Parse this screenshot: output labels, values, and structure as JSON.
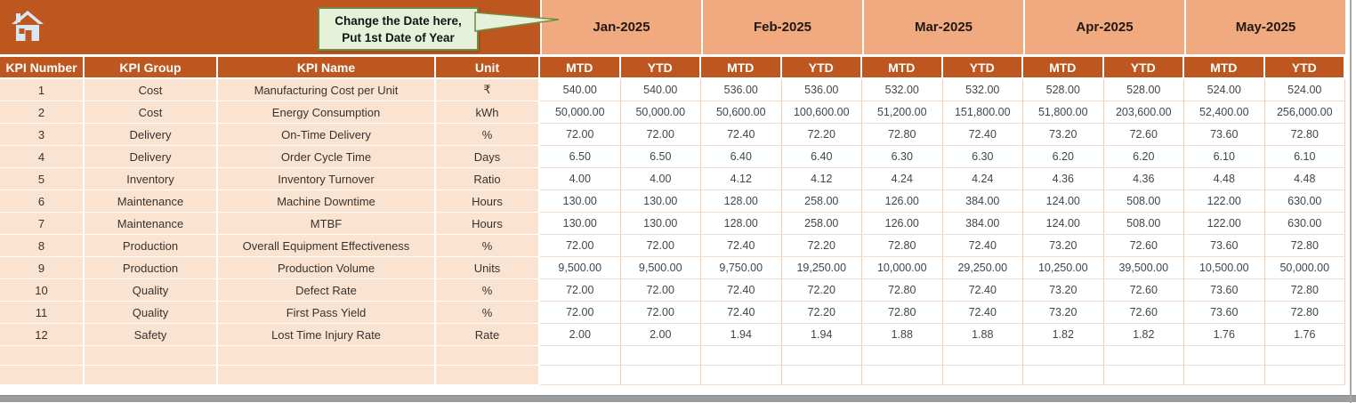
{
  "callout": {
    "line1": "Change the Date here,",
    "line2": "Put 1st Date of Year"
  },
  "table": {
    "columns": [
      "KPI Number",
      "KPI Group",
      "KPI Name",
      "Unit"
    ],
    "months": [
      "Jan-2025",
      "Feb-2025",
      "Mar-2025",
      "Apr-2025",
      "May-2025"
    ],
    "subheaders": [
      "MTD",
      "YTD"
    ],
    "rows": [
      {
        "number": "1",
        "group": "Cost",
        "name": "Manufacturing Cost per Unit",
        "unit": "₹",
        "values": [
          "540.00",
          "540.00",
          "536.00",
          "536.00",
          "532.00",
          "532.00",
          "528.00",
          "528.00",
          "524.00",
          "524.00"
        ]
      },
      {
        "number": "2",
        "group": "Cost",
        "name": "Energy Consumption",
        "unit": "kWh",
        "values": [
          "50,000.00",
          "50,000.00",
          "50,600.00",
          "100,600.00",
          "51,200.00",
          "151,800.00",
          "51,800.00",
          "203,600.00",
          "52,400.00",
          "256,000.00"
        ]
      },
      {
        "number": "3",
        "group": "Delivery",
        "name": "On-Time Delivery",
        "unit": "%",
        "values": [
          "72.00",
          "72.00",
          "72.40",
          "72.20",
          "72.80",
          "72.40",
          "73.20",
          "72.60",
          "73.60",
          "72.80"
        ]
      },
      {
        "number": "4",
        "group": "Delivery",
        "name": "Order Cycle Time",
        "unit": "Days",
        "values": [
          "6.50",
          "6.50",
          "6.40",
          "6.40",
          "6.30",
          "6.30",
          "6.20",
          "6.20",
          "6.10",
          "6.10"
        ]
      },
      {
        "number": "5",
        "group": "Inventory",
        "name": "Inventory Turnover",
        "unit": "Ratio",
        "values": [
          "4.00",
          "4.00",
          "4.12",
          "4.12",
          "4.24",
          "4.24",
          "4.36",
          "4.36",
          "4.48",
          "4.48"
        ]
      },
      {
        "number": "6",
        "group": "Maintenance",
        "name": "Machine Downtime",
        "unit": "Hours",
        "values": [
          "130.00",
          "130.00",
          "128.00",
          "258.00",
          "126.00",
          "384.00",
          "124.00",
          "508.00",
          "122.00",
          "630.00"
        ]
      },
      {
        "number": "7",
        "group": "Maintenance",
        "name": "MTBF",
        "unit": "Hours",
        "values": [
          "130.00",
          "130.00",
          "128.00",
          "258.00",
          "126.00",
          "384.00",
          "124.00",
          "508.00",
          "122.00",
          "630.00"
        ]
      },
      {
        "number": "8",
        "group": "Production",
        "name": "Overall Equipment Effectiveness",
        "unit": "%",
        "values": [
          "72.00",
          "72.00",
          "72.40",
          "72.20",
          "72.80",
          "72.40",
          "73.20",
          "72.60",
          "73.60",
          "72.80"
        ]
      },
      {
        "number": "9",
        "group": "Production",
        "name": "Production Volume",
        "unit": "Units",
        "values": [
          "9,500.00",
          "9,500.00",
          "9,750.00",
          "19,250.00",
          "10,000.00",
          "29,250.00",
          "10,250.00",
          "39,500.00",
          "10,500.00",
          "50,000.00"
        ]
      },
      {
        "number": "10",
        "group": "Quality",
        "name": "Defect Rate",
        "unit": "%",
        "values": [
          "72.00",
          "72.00",
          "72.40",
          "72.20",
          "72.80",
          "72.40",
          "73.20",
          "72.60",
          "73.60",
          "72.80"
        ]
      },
      {
        "number": "11",
        "group": "Quality",
        "name": "First Pass Yield",
        "unit": "%",
        "values": [
          "72.00",
          "72.00",
          "72.40",
          "72.20",
          "72.80",
          "72.40",
          "73.20",
          "72.60",
          "73.60",
          "72.80"
        ]
      },
      {
        "number": "12",
        "group": "Safety",
        "name": "Lost Time Injury Rate",
        "unit": "Rate",
        "values": [
          "2.00",
          "2.00",
          "1.94",
          "1.94",
          "1.88",
          "1.88",
          "1.82",
          "1.82",
          "1.76",
          "1.76"
        ]
      }
    ],
    "empty_rows": 2
  },
  "colors": {
    "header_rust": "#BE571F",
    "month_salmon": "#F1A97F",
    "row_peach": "#FBE3D2",
    "grid_line": "#F2CFB9",
    "callout_bg": "#E6F1DA",
    "callout_border": "#6F8C3F",
    "scrollbar_gray": "#9C9C9C"
  }
}
